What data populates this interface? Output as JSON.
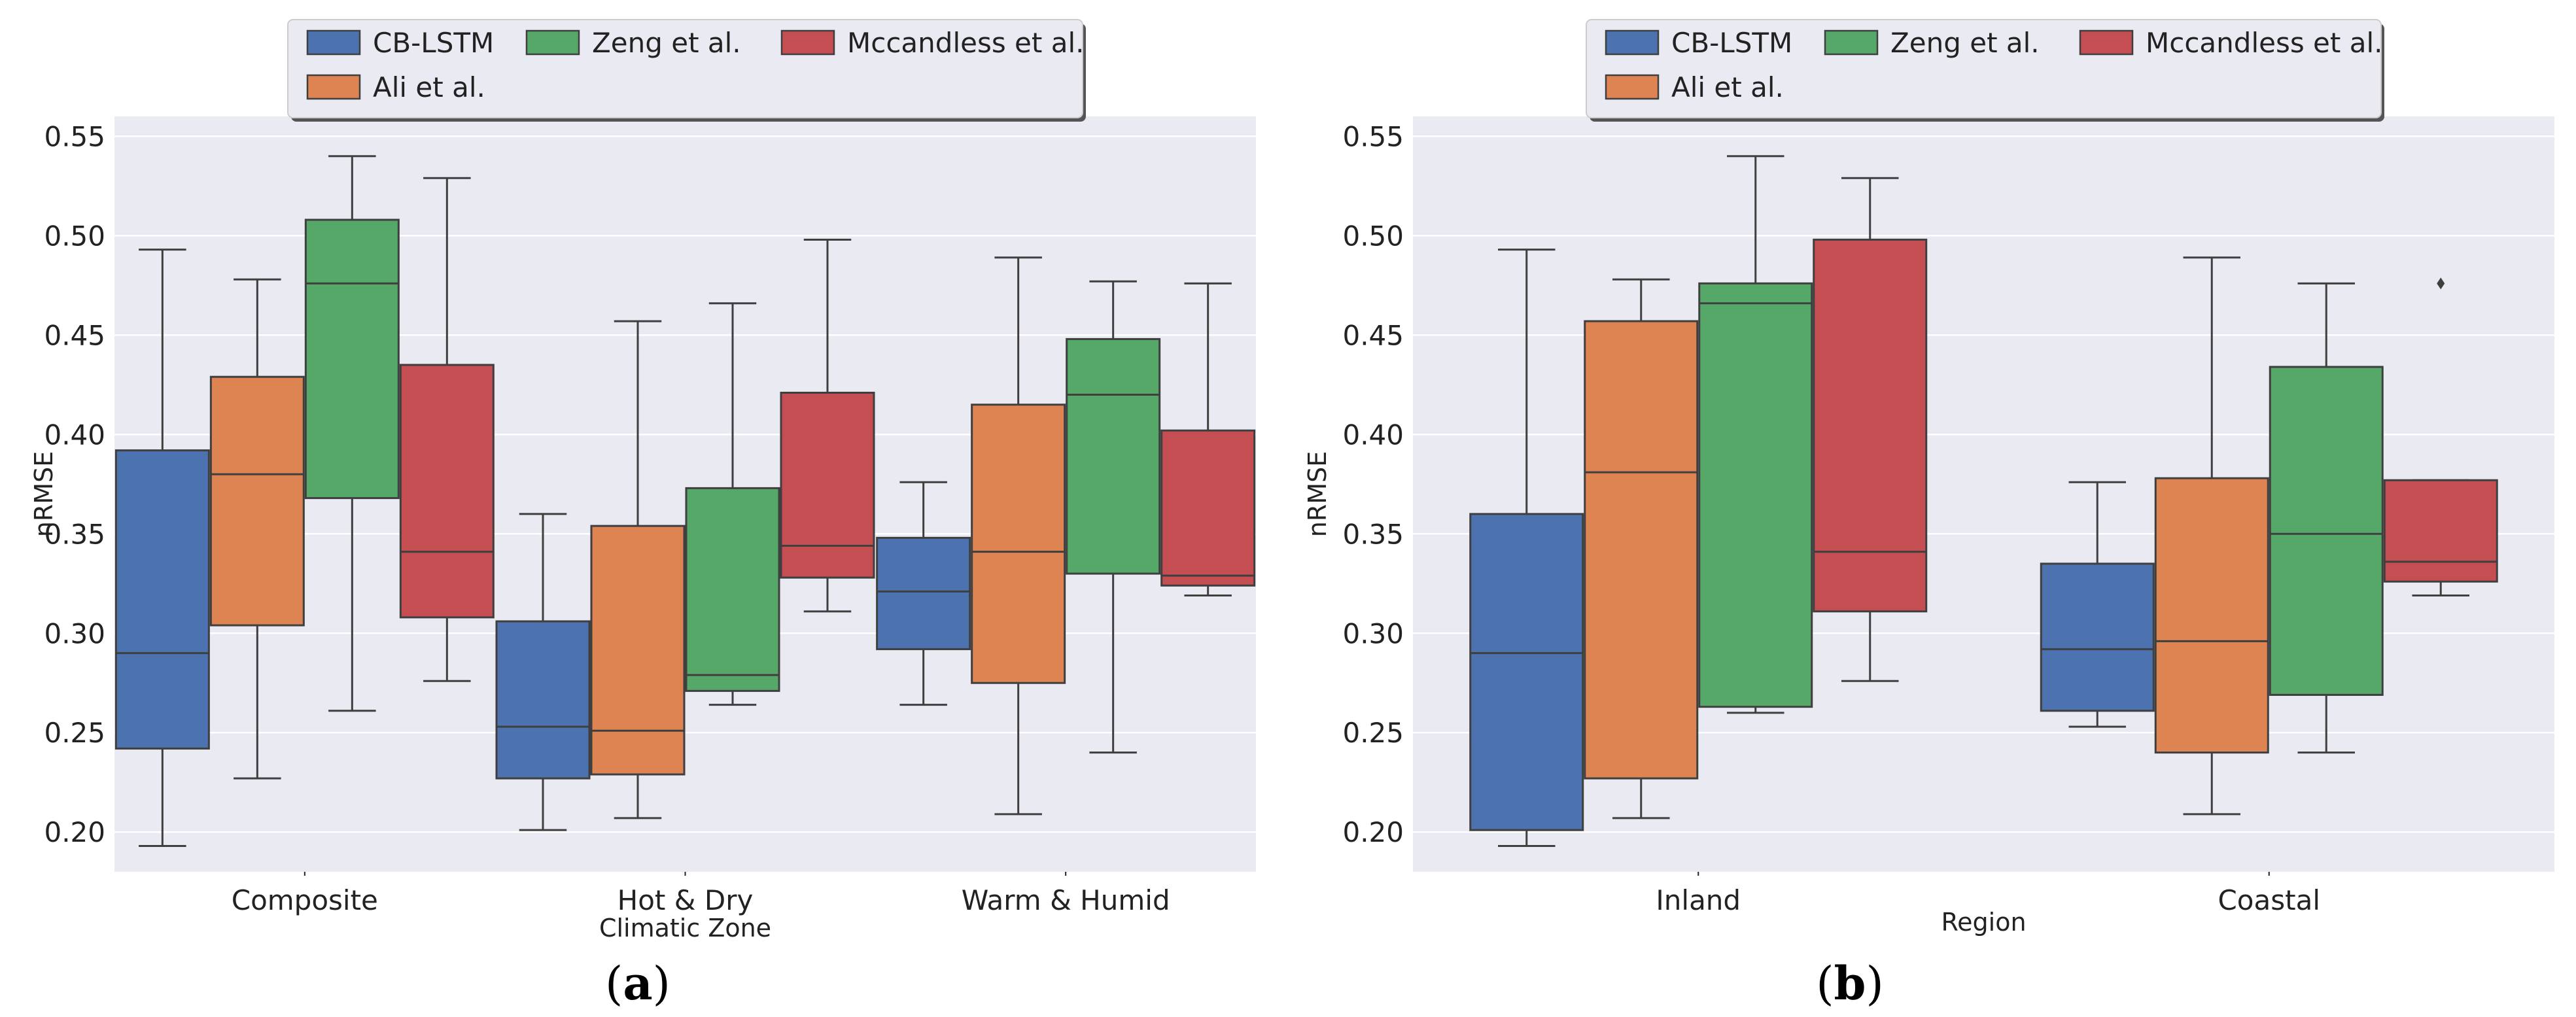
{
  "figure": {
    "panels": [
      {
        "label_prefix": "(",
        "label_letter": "a",
        "label_suffix": ")"
      },
      {
        "label_prefix": "(",
        "label_letter": "b",
        "label_suffix": ")"
      }
    ]
  },
  "chart_data": [
    {
      "type": "box",
      "title": "",
      "xlabel": "Climatic Zone",
      "ylabel": "nRMSE",
      "ylim": [
        0.18,
        0.56
      ],
      "yticks": [
        0.2,
        0.25,
        0.3,
        0.35,
        0.4,
        0.45,
        0.5,
        0.55
      ],
      "grid": true,
      "legend_position": "top-center",
      "legend_order": [
        "CB-LSTM",
        "Zeng et al.",
        "Mccandless et al.",
        "Ali et al."
      ],
      "categories": [
        "Composite",
        "Hot & Dry",
        "Warm & Humid"
      ],
      "series": [
        {
          "name": "CB-LSTM",
          "color": "#4c72b0",
          "boxes": [
            {
              "min": 0.193,
              "q1": 0.242,
              "median": 0.29,
              "q3": 0.392,
              "max": 0.493,
              "outliers": []
            },
            {
              "min": 0.201,
              "q1": 0.227,
              "median": 0.253,
              "q3": 0.306,
              "max": 0.36,
              "outliers": []
            },
            {
              "min": 0.264,
              "q1": 0.292,
              "median": 0.321,
              "q3": 0.348,
              "max": 0.376,
              "outliers": []
            }
          ]
        },
        {
          "name": "Ali et al.",
          "color": "#dd8452",
          "boxes": [
            {
              "min": 0.227,
              "q1": 0.304,
              "median": 0.38,
              "q3": 0.429,
              "max": 0.478,
              "outliers": []
            },
            {
              "min": 0.207,
              "q1": 0.229,
              "median": 0.251,
              "q3": 0.354,
              "max": 0.457,
              "outliers": []
            },
            {
              "min": 0.209,
              "q1": 0.275,
              "median": 0.341,
              "q3": 0.415,
              "max": 0.489,
              "outliers": []
            }
          ]
        },
        {
          "name": "Zeng et al.",
          "color": "#55a868",
          "boxes": [
            {
              "min": 0.261,
              "q1": 0.368,
              "median": 0.476,
              "q3": 0.508,
              "max": 0.54,
              "outliers": []
            },
            {
              "min": 0.264,
              "q1": 0.271,
              "median": 0.279,
              "q3": 0.373,
              "max": 0.466,
              "outliers": []
            },
            {
              "min": 0.24,
              "q1": 0.33,
              "median": 0.42,
              "q3": 0.448,
              "max": 0.477,
              "outliers": []
            }
          ]
        },
        {
          "name": "Mccandless et al.",
          "color": "#c44e52",
          "boxes": [
            {
              "min": 0.276,
              "q1": 0.308,
              "median": 0.341,
              "q3": 0.435,
              "max": 0.529,
              "outliers": []
            },
            {
              "min": 0.311,
              "q1": 0.328,
              "median": 0.344,
              "q3": 0.421,
              "max": 0.498,
              "outliers": []
            },
            {
              "min": 0.319,
              "q1": 0.324,
              "median": 0.329,
              "q3": 0.402,
              "max": 0.476,
              "outliers": []
            }
          ]
        }
      ]
    },
    {
      "type": "box",
      "title": "",
      "xlabel": "Region",
      "ylabel": "nRMSE",
      "ylim": [
        0.18,
        0.56
      ],
      "yticks": [
        0.2,
        0.25,
        0.3,
        0.35,
        0.4,
        0.45,
        0.5,
        0.55
      ],
      "grid": true,
      "legend_position": "top-center",
      "legend_order": [
        "CB-LSTM",
        "Zeng et al.",
        "Mccandless et al.",
        "Ali et al."
      ],
      "categories": [
        "Inland",
        "Coastal"
      ],
      "series": [
        {
          "name": "CB-LSTM",
          "color": "#4c72b0",
          "boxes": [
            {
              "min": 0.193,
              "q1": 0.201,
              "median": 0.29,
              "q3": 0.36,
              "max": 0.493,
              "outliers": []
            },
            {
              "min": 0.253,
              "q1": 0.261,
              "median": 0.292,
              "q3": 0.335,
              "max": 0.376,
              "outliers": []
            }
          ]
        },
        {
          "name": "Ali et al.",
          "color": "#dd8452",
          "boxes": [
            {
              "min": 0.207,
              "q1": 0.227,
              "median": 0.381,
              "q3": 0.457,
              "max": 0.478,
              "outliers": []
            },
            {
              "min": 0.209,
              "q1": 0.24,
              "median": 0.296,
              "q3": 0.378,
              "max": 0.489,
              "outliers": []
            }
          ]
        },
        {
          "name": "Zeng et al.",
          "color": "#55a868",
          "boxes": [
            {
              "min": 0.26,
              "q1": 0.263,
              "median": 0.466,
              "q3": 0.476,
              "max": 0.54,
              "outliers": []
            },
            {
              "min": 0.24,
              "q1": 0.269,
              "median": 0.35,
              "q3": 0.434,
              "max": 0.476,
              "outliers": []
            }
          ]
        },
        {
          "name": "Mccandless et al.",
          "color": "#c44e52",
          "boxes": [
            {
              "min": 0.276,
              "q1": 0.311,
              "median": 0.341,
              "q3": 0.498,
              "max": 0.529,
              "outliers": []
            },
            {
              "min": 0.319,
              "q1": 0.326,
              "median": 0.336,
              "q3": 0.377,
              "max": 0.377,
              "outliers": [
                0.476
              ]
            }
          ]
        }
      ]
    }
  ]
}
